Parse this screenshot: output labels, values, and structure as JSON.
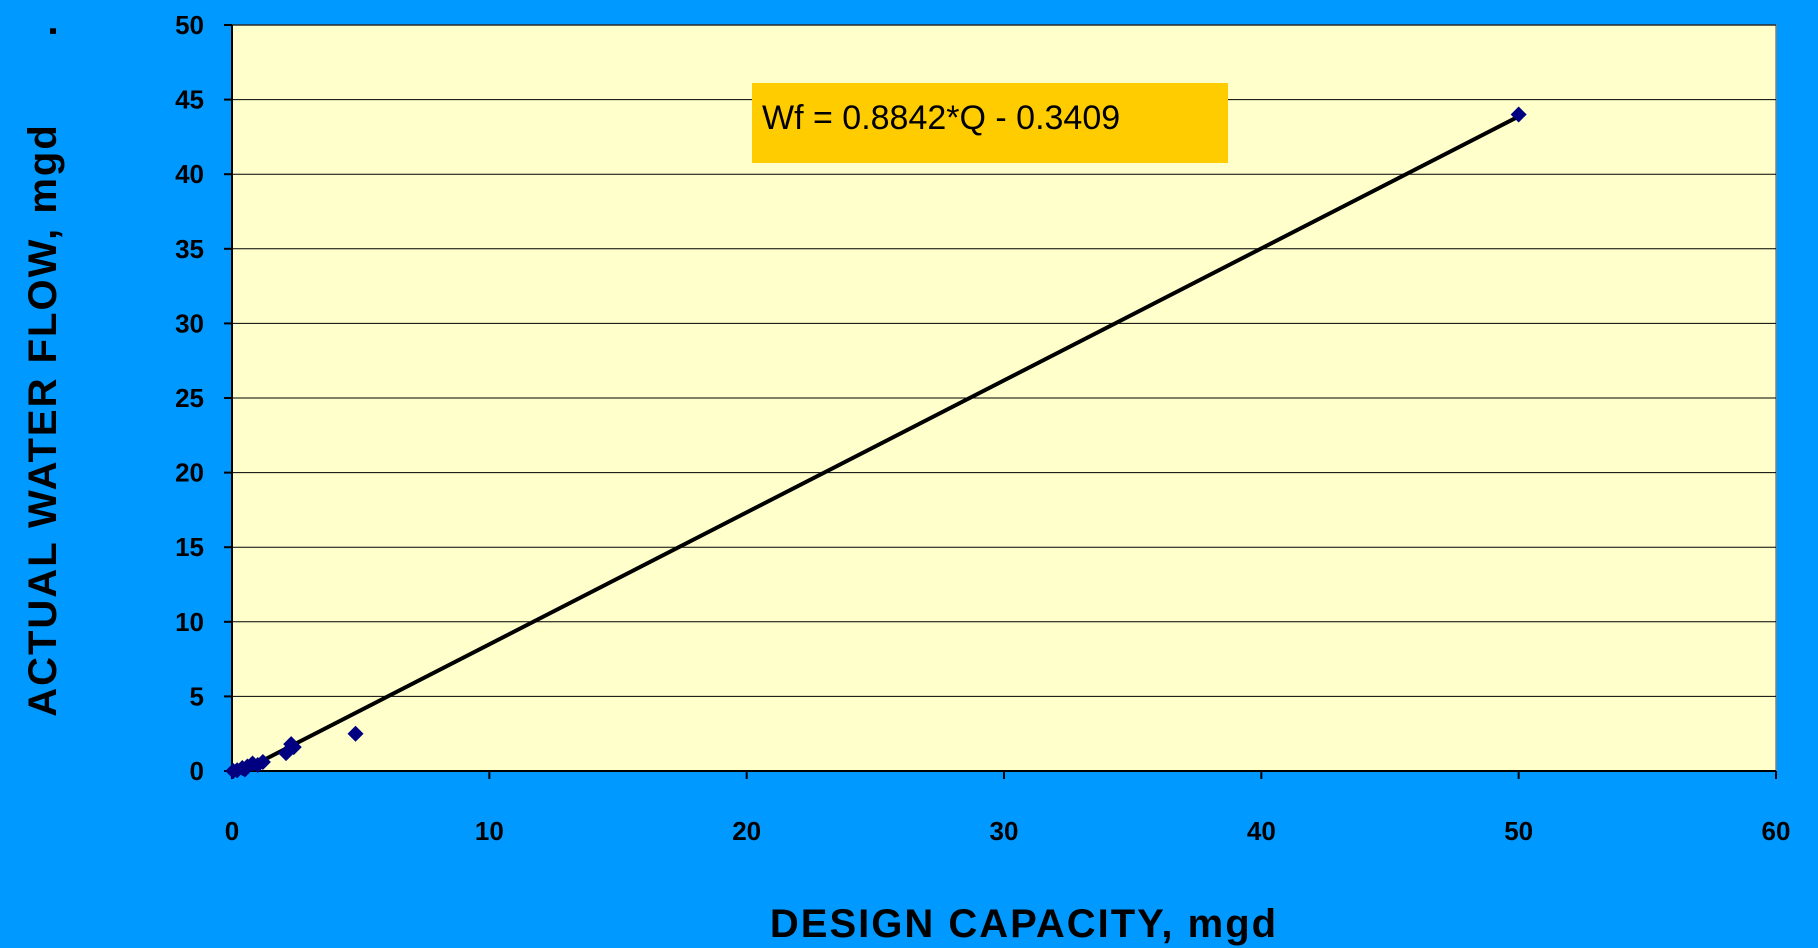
{
  "chart_data": {
    "type": "scatter",
    "title": "",
    "xlabel": "DESIGN CAPACITY, mgd",
    "ylabel": "ACTUAL WATER FLOW, mgd",
    "ylabel_suffix": ".",
    "xlim": [
      0,
      60
    ],
    "ylim": [
      0,
      50
    ],
    "x_ticks": [
      0,
      10,
      20,
      30,
      40,
      50,
      60
    ],
    "y_ticks": [
      0,
      5,
      10,
      15,
      20,
      25,
      30,
      35,
      40,
      45,
      50
    ],
    "grid": "horizontal",
    "plot_background": "#ffffcc",
    "page_background": "#0099ff",
    "series": [
      {
        "type": "scatter",
        "marker": "diamond",
        "color": "#000080",
        "points": [
          {
            "x": 0.05,
            "y": 0.0
          },
          {
            "x": 0.2,
            "y": 0.05
          },
          {
            "x": 0.4,
            "y": 0.2
          },
          {
            "x": 0.5,
            "y": 0.1
          },
          {
            "x": 0.6,
            "y": 0.3
          },
          {
            "x": 0.8,
            "y": 0.5
          },
          {
            "x": 1.0,
            "y": 0.4
          },
          {
            "x": 1.2,
            "y": 0.6
          },
          {
            "x": 2.1,
            "y": 1.2
          },
          {
            "x": 2.3,
            "y": 1.8
          },
          {
            "x": 2.4,
            "y": 1.6
          },
          {
            "x": 4.8,
            "y": 2.5
          },
          {
            "x": 50.0,
            "y": 44.0
          }
        ]
      },
      {
        "type": "line",
        "color": "#000000",
        "points": [
          {
            "x": 0.4,
            "y": 0.0
          },
          {
            "x": 50.0,
            "y": 43.87
          }
        ]
      }
    ],
    "annotation": {
      "text": "Wf = 0.8842*Q - 0.3409",
      "background": "#ffcc00"
    }
  }
}
